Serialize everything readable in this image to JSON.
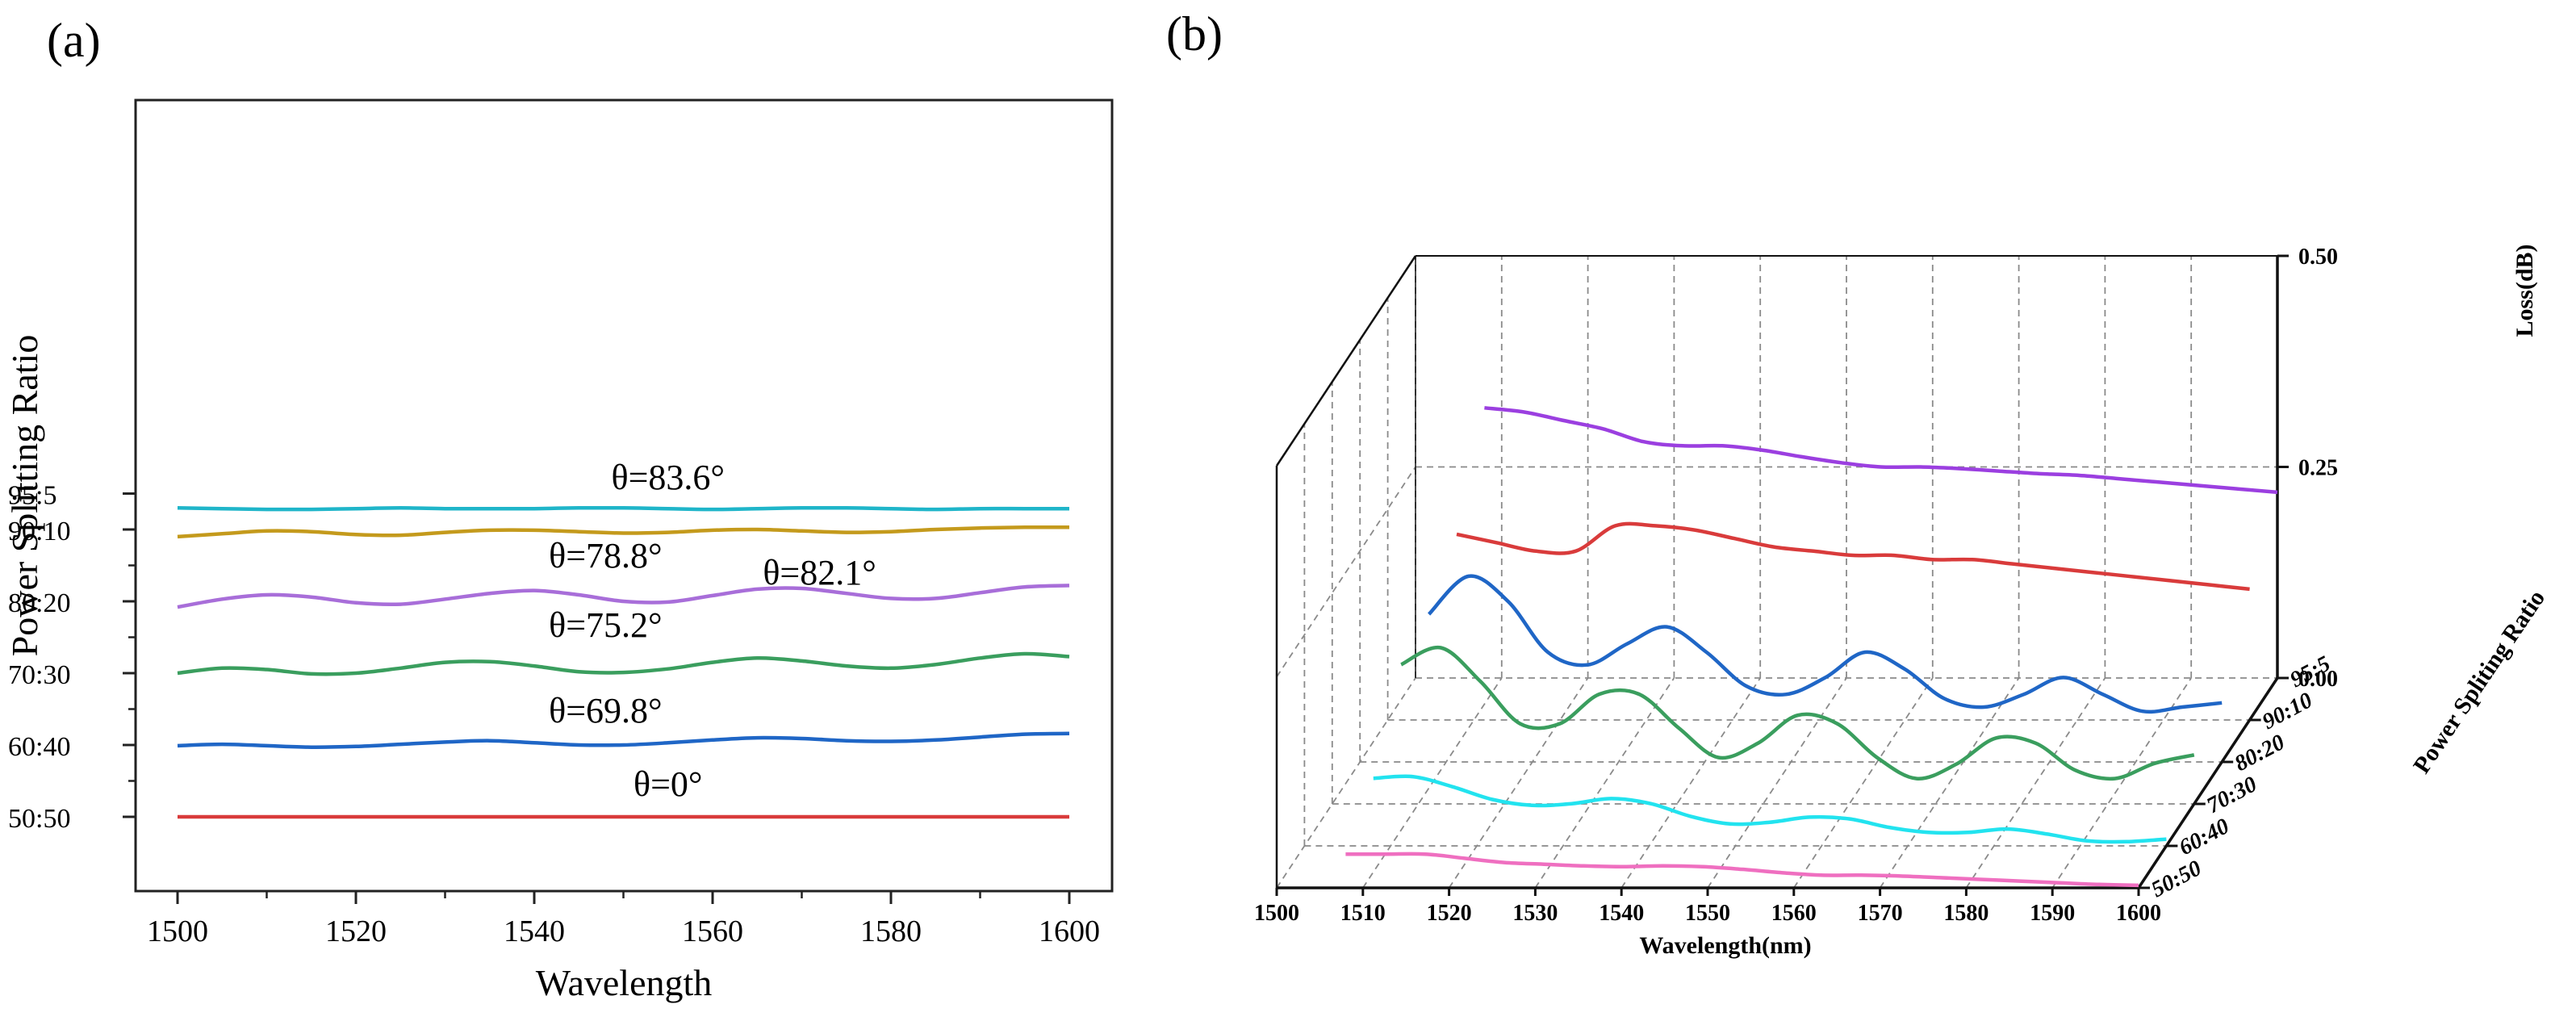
{
  "chart_data": [
    {
      "panel": "(a)",
      "type": "line",
      "xlabel": "Wavelength",
      "ylabel": "Power Splitting Ratio",
      "xlim": [
        1495,
        1605
      ],
      "x_ticks": [
        1500,
        1520,
        1540,
        1560,
        1580,
        1600
      ],
      "y_ticks": [
        "50:50",
        "60:40",
        "70:30",
        "80:20",
        "90:10",
        "95:5"
      ],
      "x": [
        1500,
        1505,
        1510,
        1515,
        1520,
        1525,
        1530,
        1535,
        1540,
        1545,
        1550,
        1555,
        1560,
        1565,
        1570,
        1575,
        1580,
        1585,
        1590,
        1595,
        1600
      ],
      "series": [
        {
          "name": "θ=0°",
          "color": "#d93b3b",
          "values": [
            50,
            50,
            50,
            50,
            50,
            50,
            50,
            50,
            50,
            50,
            50,
            50,
            50,
            50,
            50,
            50,
            50,
            50,
            50,
            50,
            50
          ]
        },
        {
          "name": "θ=69.8°",
          "color": "#1f66c6",
          "values": [
            59.9,
            60.1,
            59.9,
            59.7,
            59.8,
            60.1,
            60.4,
            60.6,
            60.3,
            60.0,
            60.0,
            60.3,
            60.7,
            61.0,
            60.9,
            60.6,
            60.5,
            60.7,
            61.1,
            61.5,
            61.6
          ]
        },
        {
          "name": "θ=75.2°",
          "color": "#3a9e5e",
          "values": [
            70.0,
            70.7,
            70.5,
            69.9,
            70.0,
            70.7,
            71.5,
            71.6,
            71.0,
            70.2,
            70.1,
            70.6,
            71.5,
            72.1,
            71.7,
            71.0,
            70.7,
            71.2,
            72.1,
            72.7,
            72.3
          ]
        },
        {
          "name": "θ=78.8°",
          "color": "#a86ed9",
          "values": [
            79.2,
            80.3,
            80.9,
            80.6,
            79.8,
            79.6,
            80.3,
            81.1,
            81.5,
            80.9,
            80.0,
            79.9,
            80.8,
            81.7,
            81.8,
            81.1,
            80.4,
            80.4,
            81.2,
            82.0,
            82.2
          ]
        },
        {
          "name": "θ=82.1°",
          "color": "#c49a1c",
          "values": [
            89.0,
            89.4,
            89.8,
            89.7,
            89.3,
            89.2,
            89.6,
            89.9,
            89.9,
            89.7,
            89.5,
            89.6,
            89.9,
            90.0,
            89.8,
            89.6,
            89.7,
            90.0,
            90.2,
            90.3,
            90.3
          ]
        },
        {
          "name": "θ=83.6°",
          "color": "#1fb5c9",
          "values": [
            93.0,
            92.9,
            92.8,
            92.8,
            92.9,
            93.0,
            92.9,
            92.9,
            92.9,
            93.0,
            93.0,
            92.9,
            92.8,
            92.9,
            93.0,
            93.0,
            92.9,
            92.8,
            92.9,
            92.9,
            92.9
          ]
        }
      ]
    },
    {
      "panel": "(b)",
      "type": "line",
      "projection": "3d",
      "xlabel": "Wavelength(nm)",
      "ylabel": "Power Spliting Ratio",
      "zlabel": "Loss(dB)",
      "xlim": [
        1500,
        1600
      ],
      "zlim": [
        0,
        0.5
      ],
      "x_ticks": [
        1500,
        1510,
        1520,
        1530,
        1540,
        1550,
        1560,
        1570,
        1580,
        1590,
        1600
      ],
      "y_ticks": [
        "50:50",
        "60:40",
        "70:30",
        "80:20",
        "90:10",
        "95:5"
      ],
      "z_ticks": [
        "0.00",
        "0.25",
        "0.50"
      ],
      "x": [
        1500,
        1505,
        1510,
        1515,
        1520,
        1525,
        1530,
        1535,
        1540,
        1545,
        1550,
        1555,
        1560,
        1565,
        1570,
        1575,
        1580,
        1585,
        1590,
        1595,
        1600
      ],
      "series": [
        {
          "name": "50:50",
          "color": "#ef6fc0",
          "values": [
            0.04,
            0.04,
            0.04,
            0.035,
            0.03,
            0.028,
            0.026,
            0.025,
            0.026,
            0.025,
            0.022,
            0.018,
            0.015,
            0.015,
            0.014,
            0.012,
            0.01,
            0.008,
            0.006,
            0.004,
            0.003
          ]
        },
        {
          "name": "60:40",
          "color": "#22e3ef",
          "values": [
            0.08,
            0.082,
            0.07,
            0.055,
            0.048,
            0.05,
            0.056,
            0.05,
            0.035,
            0.026,
            0.028,
            0.034,
            0.032,
            0.022,
            0.016,
            0.016,
            0.02,
            0.014,
            0.006,
            0.005,
            0.008
          ]
        },
        {
          "name": "70:30",
          "color": "#3a9e5e",
          "values": [
            0.165,
            0.185,
            0.145,
            0.095,
            0.095,
            0.13,
            0.13,
            0.09,
            0.055,
            0.072,
            0.105,
            0.095,
            0.055,
            0.03,
            0.047,
            0.078,
            0.072,
            0.04,
            0.03,
            0.048,
            0.058
          ]
        },
        {
          "name": "80:20",
          "color": "#1f66c6",
          "values": [
            0.175,
            0.22,
            0.19,
            0.13,
            0.115,
            0.14,
            0.16,
            0.13,
            0.09,
            0.08,
            0.1,
            0.13,
            0.11,
            0.075,
            0.065,
            0.08,
            0.1,
            0.08,
            0.06,
            0.065,
            0.07
          ]
        },
        {
          "name": "90:10",
          "color": "#d93b3b",
          "values": [
            0.22,
            0.21,
            0.2,
            0.2,
            0.23,
            0.23,
            0.225,
            0.215,
            0.205,
            0.2,
            0.195,
            0.195,
            0.19,
            0.19,
            0.185,
            0.18,
            0.175,
            0.17,
            0.165,
            0.16,
            0.155
          ]
        },
        {
          "name": "95:5",
          "color": "#9b3fe0",
          "values": [
            0.32,
            0.315,
            0.305,
            0.295,
            0.28,
            0.275,
            0.275,
            0.27,
            0.262,
            0.255,
            0.25,
            0.25,
            0.248,
            0.245,
            0.242,
            0.24,
            0.236,
            0.232,
            0.228,
            0.224,
            0.22
          ]
        }
      ]
    }
  ]
}
